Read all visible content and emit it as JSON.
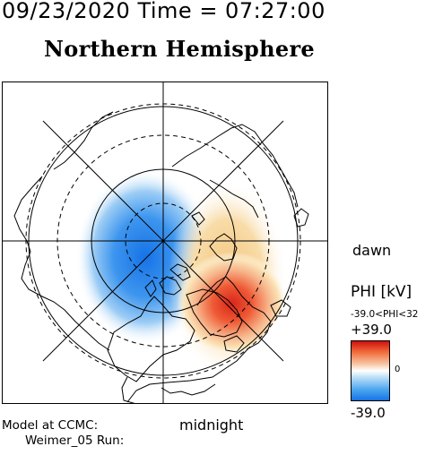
{
  "header": {
    "datetime": "09/23/2020 Time = 07:27:00",
    "hemisphere": "Northern Hemisphere"
  },
  "map": {
    "orientation": {
      "right_label": "dawn",
      "bottom_label": "midnight"
    },
    "colors": {
      "positive": "#e0301e",
      "negative": "#1f7fe6",
      "coast": "#000000"
    }
  },
  "colorbar": {
    "title": "PHI [kV]",
    "range_text": "-39.0<PHI<32",
    "max_label": "+39.0",
    "mid_label": "0",
    "min_label": "-39.0"
  },
  "footer": {
    "model_label": "Model at CCMC:",
    "run_label": "Weimer_05 Run:"
  }
}
